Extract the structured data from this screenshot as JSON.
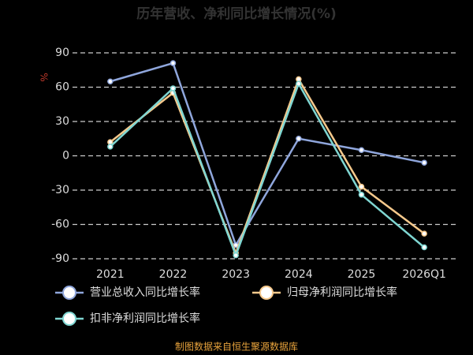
{
  "chart_data": {
    "type": "line",
    "title": "历年营收、净利同比增长情况(%)",
    "y_label": "%",
    "categories": [
      "2021",
      "2022",
      "2023",
      "2024",
      "2025",
      "2026Q1"
    ],
    "series": [
      {
        "name": "营业总收入同比增长率",
        "color": "#8fa6dc",
        "values": [
          65,
          81,
          -78,
          15,
          5,
          -6
        ]
      },
      {
        "name": "归母净利润同比增长率",
        "color": "#f6c98c",
        "values": [
          12,
          55,
          -85,
          67,
          -27,
          -68
        ]
      },
      {
        "name": "扣非净利润同比增长率",
        "color": "#7fd6d2",
        "values": [
          8,
          59,
          -87,
          63,
          -34,
          -80
        ]
      }
    ],
    "ylim": [
      -90,
      90
    ],
    "yticks": [
      -90,
      -60,
      -30,
      0,
      30,
      60,
      90
    ],
    "grid": true,
    "source": "制图数据来自恒生聚源数据库"
  }
}
